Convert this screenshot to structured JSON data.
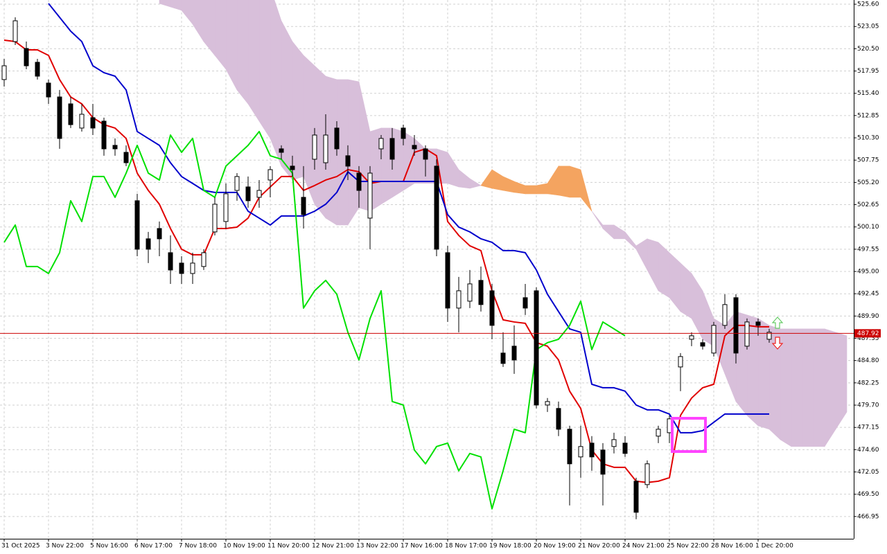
{
  "chart_data": {
    "type": "candlestick",
    "categories": [
      "31 Oct 2025",
      null,
      null,
      null,
      "3 Nov 22:00",
      null,
      null,
      null,
      "5 Nov 16:00",
      null,
      null,
      null,
      "6 Nov 17:00",
      null,
      null,
      null,
      "7 Nov 18:00",
      null,
      null,
      null,
      "10 Nov 19:00",
      null,
      null,
      null,
      "11 Nov 20:00",
      null,
      null,
      null,
      "12 Nov 21:00",
      null,
      null,
      null,
      "13 Nov 22:00",
      null,
      null,
      null,
      "17 Nov 16:00",
      null,
      null,
      null,
      "18 Nov 17:00",
      null,
      null,
      null,
      "19 Nov 18:00",
      null,
      null,
      null,
      "20 Nov 19:00",
      null,
      null,
      null,
      "21 Nov 20:00",
      null,
      null,
      null,
      "24 Nov 21:00",
      null,
      null,
      null,
      "25 Nov 22:00",
      null,
      null,
      null,
      "28 Nov 16:00",
      null,
      null,
      null,
      "1 Dec 20:00",
      null,
      null,
      null,
      null,
      null,
      null,
      null,
      null
    ],
    "open": [
      516.97,
      521.32,
      520.53,
      518.95,
      516.57,
      514.98,
      514.19,
      511.42,
      512.61,
      512.21,
      509.44,
      508.64,
      503.1,
      498.74,
      499.92,
      497.15,
      495.96,
      494.77,
      495.57,
      499.53,
      500.72,
      504.28,
      504.68,
      503.49,
      505.47,
      509.04,
      507.06,
      503.49,
      507.85,
      507.45,
      511.42,
      508.25,
      506.26,
      501.11,
      509.04,
      510.23,
      511.42,
      509.44,
      509.04,
      507.06,
      497.15,
      490.81,
      491.6,
      493.98,
      492.79,
      485.66,
      486.45,
      492.0,
      492.79,
      479.71,
      479.32,
      476.94,
      473.77,
      475.35,
      474.56,
      474.96,
      475.35,
      470.99,
      470.6,
      476.15,
      476.54,
      484.07,
      487.24,
      486.85,
      485.66,
      488.83,
      492.0,
      486.45,
      489.22,
      487.24,
      null,
      null,
      null,
      null,
      null,
      null,
      null
    ],
    "close": [
      518.55,
      523.7,
      518.55,
      517.36,
      514.98,
      510.23,
      511.81,
      513.0,
      511.42,
      509.04,
      509.04,
      507.45,
      497.55,
      497.55,
      498.74,
      495.17,
      494.77,
      495.96,
      497.15,
      502.7,
      503.89,
      505.87,
      503.1,
      504.28,
      506.66,
      508.64,
      506.66,
      501.51,
      510.62,
      510.62,
      509.04,
      507.06,
      504.28,
      506.26,
      510.23,
      507.85,
      510.23,
      509.04,
      507.85,
      497.55,
      490.81,
      492.79,
      493.58,
      491.21,
      488.83,
      484.47,
      484.87,
      490.81,
      479.71,
      480.11,
      476.94,
      472.98,
      474.96,
      473.77,
      471.79,
      475.75,
      474.17,
      467.43,
      472.98,
      476.94,
      478.13,
      485.26,
      487.64,
      486.45,
      488.83,
      491.21,
      485.66,
      489.22,
      488.83,
      488.04,
      null,
      null,
      null,
      null,
      null,
      null,
      null
    ],
    "high": [
      519.34,
      524.1,
      521.32,
      519.34,
      516.97,
      515.78,
      514.98,
      514.19,
      514.19,
      512.61,
      510.23,
      509.44,
      503.89,
      499.53,
      500.72,
      499.13,
      496.75,
      497.15,
      497.55,
      503.49,
      505.08,
      506.26,
      505.87,
      505.47,
      507.06,
      509.44,
      508.25,
      507.06,
      511.42,
      513.0,
      512.21,
      509.44,
      507.06,
      507.06,
      510.62,
      511.42,
      511.81,
      510.62,
      509.44,
      507.85,
      497.94,
      494.38,
      495.17,
      495.57,
      493.58,
      488.04,
      488.83,
      493.58,
      493.19,
      480.51,
      480.11,
      477.34,
      477.34,
      476.15,
      475.35,
      476.54,
      476.15,
      471.39,
      473.37,
      477.34,
      478.52,
      485.66,
      488.04,
      487.24,
      489.22,
      492.4,
      492.4,
      489.62,
      489.62,
      488.43,
      null,
      null,
      null,
      null,
      null,
      null,
      null
    ],
    "low": [
      516.17,
      520.93,
      518.15,
      516.97,
      514.19,
      509.04,
      511.42,
      511.02,
      510.62,
      508.25,
      508.25,
      507.06,
      496.75,
      495.96,
      496.75,
      493.58,
      493.58,
      493.58,
      495.17,
      499.13,
      499.92,
      503.1,
      502.3,
      502.3,
      503.49,
      507.85,
      505.87,
      499.92,
      506.66,
      506.66,
      508.25,
      505.47,
      502.3,
      497.55,
      507.85,
      506.66,
      509.44,
      508.25,
      505.87,
      496.75,
      489.22,
      488.04,
      490.81,
      490.41,
      487.24,
      484.07,
      483.28,
      490.02,
      479.32,
      478.92,
      476.15,
      468.22,
      471.39,
      472.18,
      468.22,
      474.17,
      473.77,
      466.64,
      470.2,
      475.35,
      475.35,
      481.3,
      486.45,
      486.06,
      485.26,
      488.43,
      484.47,
      486.06,
      487.64,
      486.85,
      null,
      null,
      null,
      null,
      null,
      null,
      null
    ],
    "up_color": "#ffffff",
    "down_color": "#000000",
    "lines": [
      {
        "color": "#e00000",
        "values": [
          521.48,
          521.32,
          520.37,
          520.37,
          519.74,
          516.97,
          514.98,
          514.19,
          512.61,
          511.81,
          511.42,
          510.23,
          506.26,
          504.28,
          502.7,
          499.92,
          497.55,
          496.91,
          496.91,
          499.92,
          499.92,
          500.08,
          501.11,
          503.49,
          504.68,
          505.87,
          505.87,
          504.28,
          504.84,
          505.47,
          505.87,
          506.66,
          506.42,
          505.08,
          505.31,
          505.31,
          505.31,
          508.64,
          509.04,
          508.25,
          500.72,
          499.13,
          497.94,
          497.39,
          492.79,
          489.46,
          489.22,
          489.07,
          486.85,
          486.45,
          484.87,
          481.3,
          479.32,
          474.56,
          472.98,
          472.58,
          472.58,
          470.99,
          470.84,
          470.99,
          471.39,
          478.52,
          480.51,
          481.69,
          482.09,
          487.64,
          488.83,
          488.83,
          488.67,
          488.67,
          null,
          null,
          null,
          null,
          null,
          null,
          null
        ]
      },
      {
        "color": "#0000cc",
        "values": [
          null,
          null,
          null,
          null,
          525.68,
          524.1,
          522.51,
          521.32,
          518.55,
          517.76,
          517.36,
          515.78,
          511.02,
          510.23,
          509.44,
          507.45,
          505.87,
          505.08,
          504.28,
          504.05,
          504.05,
          504.05,
          501.9,
          501.11,
          500.32,
          501.35,
          501.35,
          501.35,
          501.9,
          502.7,
          504.05,
          506.42,
          505.31,
          505.31,
          505.31,
          505.31,
          505.31,
          505.31,
          505.31,
          505.31,
          501.51,
          500.08,
          499.53,
          498.74,
          498.34,
          497.39,
          497.39,
          497.15,
          495.17,
          492.4,
          490.41,
          488.43,
          488.04,
          482.09,
          481.69,
          481.69,
          481.3,
          479.71,
          479.16,
          479.16,
          478.68,
          476.54,
          476.54,
          476.78,
          477.73,
          478.68,
          478.68,
          478.68,
          478.68,
          478.68,
          null,
          null,
          null,
          null,
          null,
          null,
          null
        ]
      },
      {
        "color": "#00e000",
        "values": [
          498.34,
          500.32,
          495.57,
          495.57,
          494.77,
          497.15,
          503.1,
          500.72,
          505.87,
          505.87,
          503.49,
          506.26,
          509.44,
          506.26,
          505.47,
          510.62,
          508.64,
          510.23,
          504.28,
          503.49,
          507.06,
          508.25,
          509.44,
          511.02,
          508.25,
          507.85,
          506.26,
          490.81,
          492.79,
          493.98,
          492.4,
          488.04,
          484.87,
          489.62,
          492.79,
          480.11,
          479.71,
          474.56,
          472.98,
          474.96,
          475.35,
          472.18,
          474.17,
          473.77,
          467.83,
          472.18,
          476.94,
          476.54,
          486.06,
          486.85,
          487.24,
          488.83,
          491.6,
          486.06,
          489.22,
          488.43,
          487.64,
          null,
          null,
          null,
          null,
          null,
          null,
          null,
          null,
          null,
          null,
          null,
          null,
          null,
          null,
          null,
          null,
          null,
          null,
          null,
          null
        ]
      }
    ],
    "span_a": [
      null,
      null,
      null,
      null,
      null,
      null,
      null,
      null,
      null,
      null,
      null,
      null,
      null,
      null,
      525.68,
      525.29,
      524.89,
      523.31,
      521.32,
      519.74,
      518.15,
      515.78,
      514.19,
      512.21,
      510.23,
      507.06,
      505.47,
      505.87,
      502.7,
      501.11,
      500.32,
      500.32,
      502.3,
      501.9,
      502.7,
      503.49,
      504.28,
      505.08,
      505.08,
      505.08,
      505.08,
      504.68,
      504.52,
      504.84,
      506.66,
      505.87,
      505.31,
      504.84,
      504.84,
      505.08,
      507.06,
      507.06,
      506.66,
      501.9,
      499.92,
      498.74,
      498.74,
      497.55,
      495.17,
      492.79,
      492.0,
      490.41,
      489.62,
      487.24,
      486.45,
      483.28,
      480.11,
      478.52,
      477.34,
      476.94,
      475.75,
      474.96,
      474.96,
      474.96,
      474.96,
      476.94,
      478.92
    ],
    "span_b": [
      null,
      null,
      null,
      null,
      null,
      null,
      null,
      null,
      null,
      null,
      null,
      null,
      null,
      null,
      527.5,
      527.5,
      527.5,
      527.5,
      527.5,
      527.5,
      527.5,
      527.5,
      527.5,
      527.5,
      527.5,
      523.7,
      521.32,
      519.74,
      518.55,
      517.36,
      516.97,
      516.97,
      516.73,
      511.02,
      511.42,
      511.42,
      511.02,
      510.23,
      509.04,
      509.04,
      508.64,
      506.66,
      505.63,
      504.84,
      504.52,
      504.28,
      504.05,
      503.89,
      503.89,
      503.89,
      503.73,
      503.49,
      503.49,
      501.9,
      500.32,
      500.32,
      499.53,
      497.94,
      498.74,
      498.34,
      497.15,
      495.96,
      494.77,
      492.79,
      489.62,
      488.83,
      490.41,
      490.02,
      489.62,
      488.83,
      488.43,
      488.43,
      488.43,
      488.43,
      488.43,
      488.04,
      487.64
    ],
    "cloud_colors": {
      "a_above": "#f4a460",
      "b_above": "#d8bfda"
    },
    "current_price": 487.92,
    "current_price_color": "#cc0000",
    "ylim": [
      464.4,
      526.08
    ],
    "yticks": [
      {
        "value": 525.6,
        "label": "525.60"
      },
      523.05,
      {
        "value": 520.5,
        "label": "520.50"
      },
      517.95,
      {
        "value": 515.4,
        "label": "515.40"
      },
      512.85,
      {
        "value": 510.3,
        "label": "510.30"
      },
      507.75,
      {
        "value": 505.2,
        "label": "505.20"
      },
      502.65,
      {
        "value": 500.1,
        "label": "500.10"
      },
      497.55,
      {
        "value": 495,
        "label": "495.00"
      },
      492.45,
      {
        "value": 489.9,
        "label": "489.90"
      },
      487.35,
      {
        "value": 484.8,
        "label": "484.80"
      },
      482.25,
      {
        "value": 479.7,
        "label": "479.70"
      },
      477.15,
      {
        "value": 474.6,
        "label": "474.60"
      },
      472.05,
      {
        "value": 469.5,
        "label": "469.50"
      },
      466.95
    ],
    "grid": true
  }
}
